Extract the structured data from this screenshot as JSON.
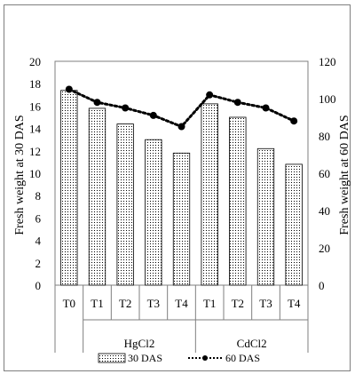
{
  "chart_data": {
    "type": "bar+line",
    "categories": [
      "T0",
      "T1",
      "T2",
      "T3",
      "T4",
      "T1",
      "T2",
      "T3",
      "T4"
    ],
    "groups": [
      {
        "label": "",
        "span": [
          0,
          0
        ]
      },
      {
        "label": "HgCl2",
        "span": [
          1,
          4
        ]
      },
      {
        "label": "CdCl2",
        "span": [
          5,
          8
        ]
      }
    ],
    "series": [
      {
        "name": "30 DAS",
        "type": "bar",
        "axis": "left",
        "pattern": "dotted",
        "values": [
          17.4,
          15.8,
          14.4,
          13.0,
          11.8,
          16.2,
          15.0,
          12.2,
          10.8
        ]
      },
      {
        "name": "60 DAS",
        "type": "line",
        "axis": "right",
        "line_style": "dotted",
        "marker": "circle",
        "values": [
          105,
          98,
          95,
          91,
          85,
          102,
          98,
          95,
          88
        ]
      }
    ],
    "ylabel_left": "Fresh weight at 30 DAS",
    "ylabel_right": "Fresh weight at 60 DAS",
    "ylim_left": [
      0,
      20
    ],
    "yticks_left": [
      "0",
      "2",
      "4",
      "6",
      "8",
      "10",
      "12",
      "14",
      "16",
      "18",
      "20"
    ],
    "ylim_right": [
      0,
      120
    ],
    "yticks_right": [
      "0",
      "20",
      "40",
      "60",
      "80",
      "100",
      "120"
    ],
    "legend_position": "bottom",
    "grid": false,
    "colors": {
      "bar_fill": "#ffffff",
      "bar_stroke": "#000000",
      "line": "#000000",
      "axis": "#7f7f7f"
    }
  }
}
